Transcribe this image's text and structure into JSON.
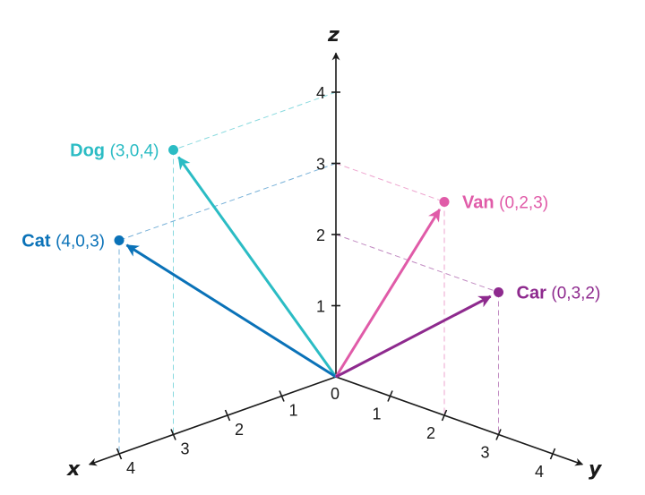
{
  "axes": {
    "x": {
      "label": "x",
      "ticks": [
        "1",
        "2",
        "3",
        "4"
      ]
    },
    "y": {
      "label": "y",
      "ticks": [
        "1",
        "2",
        "3",
        "4"
      ]
    },
    "z": {
      "label": "z",
      "ticks": [
        "1",
        "2",
        "3",
        "4"
      ]
    },
    "origin_label": "0"
  },
  "points": [
    {
      "name": "Dog",
      "coords": "(3,0,4)",
      "x": 3,
      "y": 0,
      "z": 4,
      "color": "#2bbcc4"
    },
    {
      "name": "Cat",
      "coords": "(4,0,3)",
      "x": 4,
      "y": 0,
      "z": 3,
      "color": "#0a72b8"
    },
    {
      "name": "Van",
      "coords": "(0,2,3)",
      "x": 0,
      "y": 2,
      "z": 3,
      "color": "#e05ba8"
    },
    {
      "name": "Car",
      "coords": "(0,3,2)",
      "x": 0,
      "y": 3,
      "z": 2,
      "color": "#8e2a8e"
    }
  ]
}
